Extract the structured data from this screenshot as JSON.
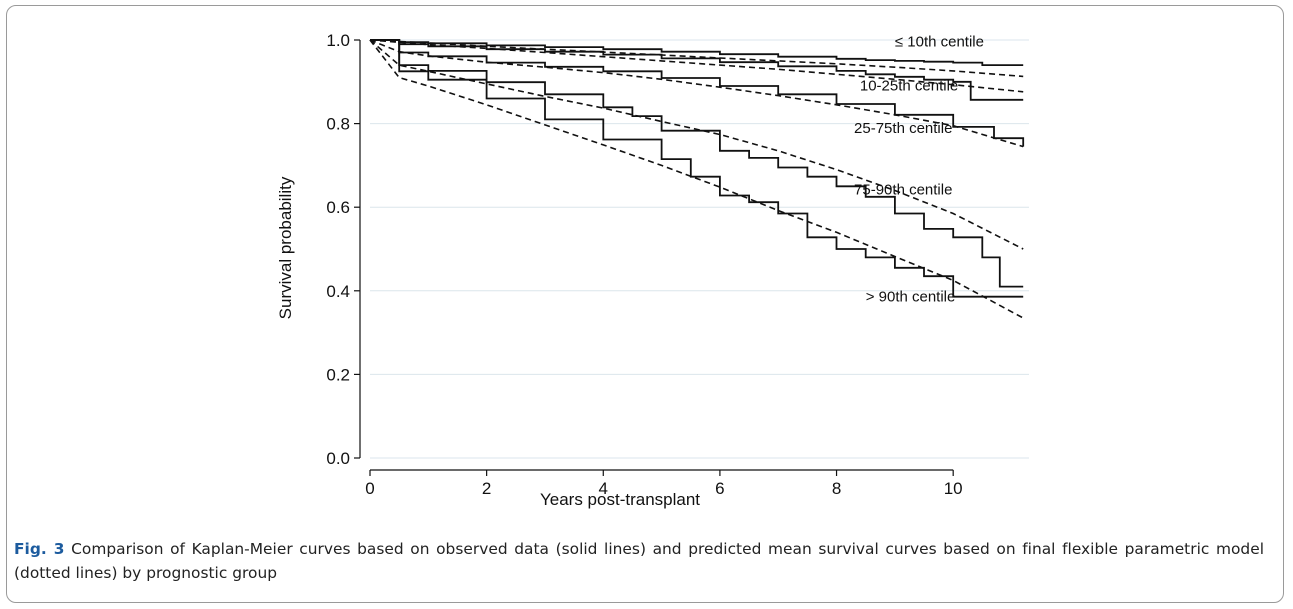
{
  "figure": {
    "caption_label": "Fig. 3",
    "caption_text": "Comparison of Kaplan-Meier curves based on observed data (solid lines) and predicted mean survival curves based on final flexible parametric model (dotted lines) by prognostic group"
  },
  "chart_data": {
    "type": "line",
    "xlabel": "Years post-transplant",
    "ylabel": "Survival probability",
    "xlim": [
      0,
      11.3
    ],
    "ylim": [
      0,
      1.0
    ],
    "x_ticks": [
      0,
      2,
      4,
      6,
      8,
      10
    ],
    "y_ticks": [
      0.0,
      0.2,
      0.4,
      0.6,
      0.8,
      1.0
    ],
    "y_tick_labels": [
      "0.0",
      "0.2",
      "0.4",
      "0.6",
      "0.8",
      "1.0"
    ],
    "grid": "horizontal",
    "line_color": "#111111",
    "grid_color": "#dbe6ec",
    "groups": [
      {
        "label": "≤ 10th centile",
        "observed": {
          "x": [
            0,
            0.5,
            1,
            2,
            3,
            4,
            5,
            6,
            7,
            8,
            8.5,
            9,
            9.5,
            10,
            10.5,
            11.2
          ],
          "y": [
            1.0,
            0.995,
            0.992,
            0.987,
            0.983,
            0.978,
            0.972,
            0.966,
            0.96,
            0.955,
            0.952,
            0.95,
            0.948,
            0.946,
            0.94,
            0.94
          ]
        },
        "predicted": {
          "x": [
            0,
            1,
            2,
            3,
            4,
            5,
            6,
            7,
            8,
            9,
            10,
            11.2
          ],
          "y": [
            1.0,
            0.993,
            0.985,
            0.978,
            0.971,
            0.964,
            0.957,
            0.95,
            0.943,
            0.935,
            0.926,
            0.913
          ]
        }
      },
      {
        "label": "10-25th centile",
        "observed": {
          "x": [
            0,
            0.5,
            1,
            2,
            3,
            4,
            5,
            6,
            7,
            8,
            8.5,
            9,
            9.5,
            10,
            10.3,
            11.2
          ],
          "y": [
            1.0,
            0.99,
            0.985,
            0.978,
            0.972,
            0.965,
            0.956,
            0.947,
            0.937,
            0.926,
            0.918,
            0.912,
            0.905,
            0.9,
            0.857,
            0.857
          ]
        },
        "predicted": {
          "x": [
            0,
            1,
            2,
            3,
            4,
            5,
            6,
            7,
            8,
            9,
            10,
            11.2
          ],
          "y": [
            1.0,
            0.989,
            0.98,
            0.97,
            0.96,
            0.95,
            0.94,
            0.93,
            0.918,
            0.906,
            0.893,
            0.876
          ]
        }
      },
      {
        "label": "25-75th centile",
        "observed": {
          "x": [
            0,
            0.5,
            1,
            2,
            3,
            4,
            5,
            6,
            7,
            8,
            9,
            10,
            10.7,
            11.2
          ],
          "y": [
            1.0,
            0.97,
            0.961,
            0.946,
            0.936,
            0.925,
            0.909,
            0.89,
            0.87,
            0.847,
            0.821,
            0.792,
            0.765,
            0.745
          ]
        },
        "predicted": {
          "x": [
            0,
            0.5,
            1,
            2,
            3,
            4,
            5,
            6,
            7,
            8,
            9,
            10,
            11.2
          ],
          "y": [
            1.0,
            0.972,
            0.962,
            0.947,
            0.935,
            0.922,
            0.906,
            0.887,
            0.867,
            0.845,
            0.821,
            0.795,
            0.745
          ]
        }
      },
      {
        "label": "75-90th centile",
        "observed": {
          "x": [
            0,
            0.5,
            1,
            2,
            3,
            4,
            4.5,
            5,
            6,
            6.5,
            7,
            7.5,
            8,
            8.5,
            9,
            9.5,
            10,
            10.5,
            10.8,
            11.2
          ],
          "y": [
            1.0,
            0.94,
            0.926,
            0.899,
            0.87,
            0.839,
            0.818,
            0.783,
            0.735,
            0.718,
            0.695,
            0.673,
            0.65,
            0.625,
            0.585,
            0.548,
            0.528,
            0.48,
            0.41,
            0.41
          ]
        },
        "predicted": {
          "x": [
            0,
            0.5,
            1,
            2,
            3,
            4,
            5,
            6,
            7,
            8,
            9,
            10,
            11.2
          ],
          "y": [
            1.0,
            0.94,
            0.925,
            0.895,
            0.865,
            0.837,
            0.805,
            0.774,
            0.735,
            0.69,
            0.64,
            0.585,
            0.5
          ]
        }
      },
      {
        "label": "> 90th centile",
        "observed": {
          "x": [
            0,
            0.5,
            1,
            2,
            3,
            4,
            5,
            5.5,
            6,
            6.5,
            7,
            7.5,
            8,
            8.5,
            9,
            9.5,
            10,
            11.2
          ],
          "y": [
            1.0,
            0.925,
            0.905,
            0.86,
            0.81,
            0.762,
            0.715,
            0.673,
            0.628,
            0.612,
            0.585,
            0.528,
            0.5,
            0.48,
            0.455,
            0.435,
            0.386,
            0.386
          ]
        },
        "predicted": {
          "x": [
            0,
            0.5,
            1,
            2,
            3,
            4,
            5,
            6,
            7,
            8,
            9,
            10,
            11.2
          ],
          "y": [
            1.0,
            0.91,
            0.89,
            0.845,
            0.797,
            0.749,
            0.7,
            0.648,
            0.592,
            0.54,
            0.482,
            0.425,
            0.335
          ]
        }
      }
    ]
  }
}
